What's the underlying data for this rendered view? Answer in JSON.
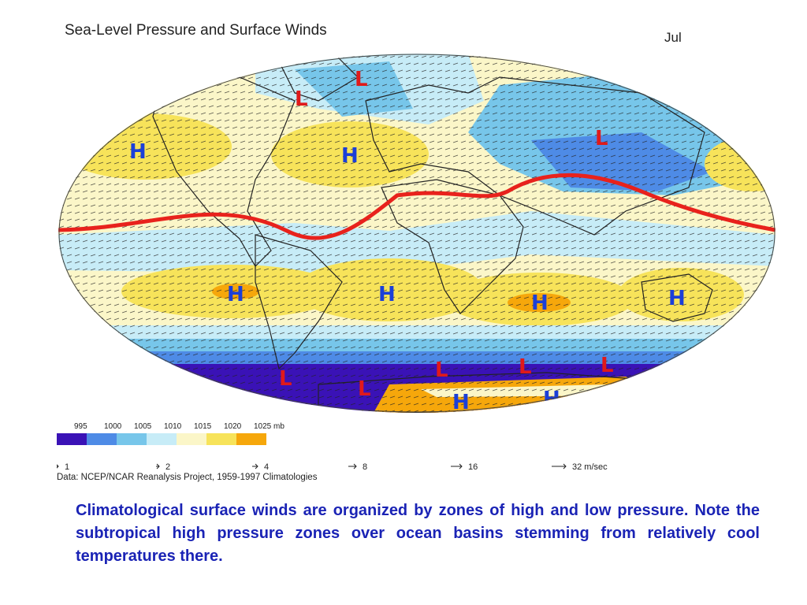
{
  "title": "Sea-Level Pressure and Surface Winds",
  "month": "Jul",
  "legend": {
    "pressure_labels": [
      "995",
      "1000",
      "1005",
      "1010",
      "1015",
      "1020",
      "1025 mb"
    ],
    "colors": [
      "#3a12b6",
      "#4e8be6",
      "#77c6ea",
      "#c7ecf7",
      "#fbf6c8",
      "#f7e35a",
      "#f6a70b"
    ]
  },
  "wind_scale": [
    "1",
    "2",
    "4",
    "8",
    "16",
    "32 m/sec"
  ],
  "source": "Data:  NCEP/NCAR Reanalysis Project, 1959-1997 Climatologies",
  "markers": [
    {
      "name": "high-marker",
      "label": "H",
      "color": "#1b3fd8"
    },
    {
      "name": "low-marker",
      "label": "L",
      "color": "#e01a1a"
    }
  ],
  "itcz_color": "#e8221c",
  "caption": "Climatological surface winds are organized by zones of high and low pressure.  Note the subtropical high pressure zones over ocean basins stemming from relatively cool temperatures there."
}
